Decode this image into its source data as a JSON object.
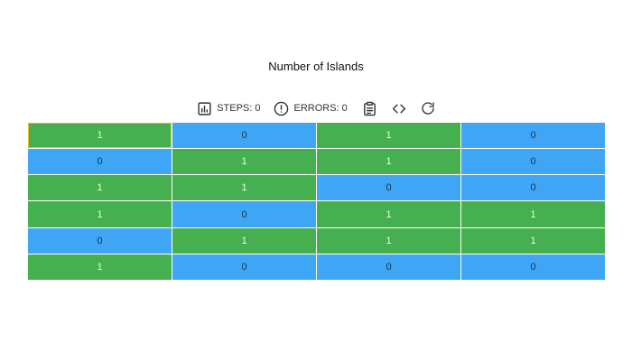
{
  "title": "Number of Islands",
  "toolbar": {
    "steps_label": "STEPS: 0",
    "errors_label": "ERRORS: 0",
    "icons": [
      "bar-chart-icon",
      "alert-circle-icon",
      "clipboard-icon",
      "code-brackets-icon",
      "refresh-icon"
    ]
  },
  "colors": {
    "land": "#46b050",
    "water": "#3ea6f5",
    "active_border": "#e3c21a"
  },
  "grid": {
    "active_cell": [
      0,
      0
    ],
    "rows": [
      [
        "1",
        "0",
        "1",
        "0"
      ],
      [
        "0",
        "1",
        "1",
        "0"
      ],
      [
        "1",
        "1",
        "0",
        "0"
      ],
      [
        "1",
        "0",
        "1",
        "1"
      ],
      [
        "0",
        "1",
        "1",
        "1"
      ],
      [
        "1",
        "0",
        "0",
        "0"
      ]
    ]
  }
}
